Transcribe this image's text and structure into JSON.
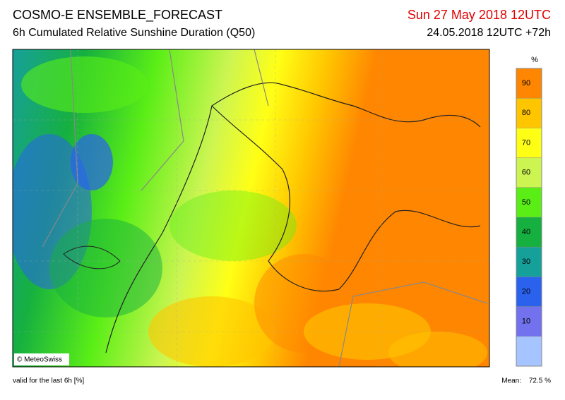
{
  "header": {
    "title": "COSMO-E ENSEMBLE_FORECAST",
    "subtitle": "6h Cumulated Relative Sunshine Duration (Q50)",
    "valid_date": "Sun 27 May 2018 12UTC",
    "run": "24.05.2018 12UTC +72h"
  },
  "map": {
    "credit": "© MeteoSwiss"
  },
  "colorbar": {
    "unit": "%",
    "range": [
      0,
      100
    ],
    "ticks": [
      10,
      20,
      30,
      40,
      50,
      60,
      70,
      80,
      90
    ],
    "colors": [
      "#a6c4ff",
      "#7272ee",
      "#2a62ee",
      "#16a09a",
      "#16b040",
      "#5aee16",
      "#ccf552",
      "#ffff16",
      "#ffc600",
      "#ff8600"
    ]
  },
  "footer": {
    "validity": "valid for the last 6h [%]",
    "mean_label": "Mean:",
    "mean_value": "72.5 %"
  }
}
